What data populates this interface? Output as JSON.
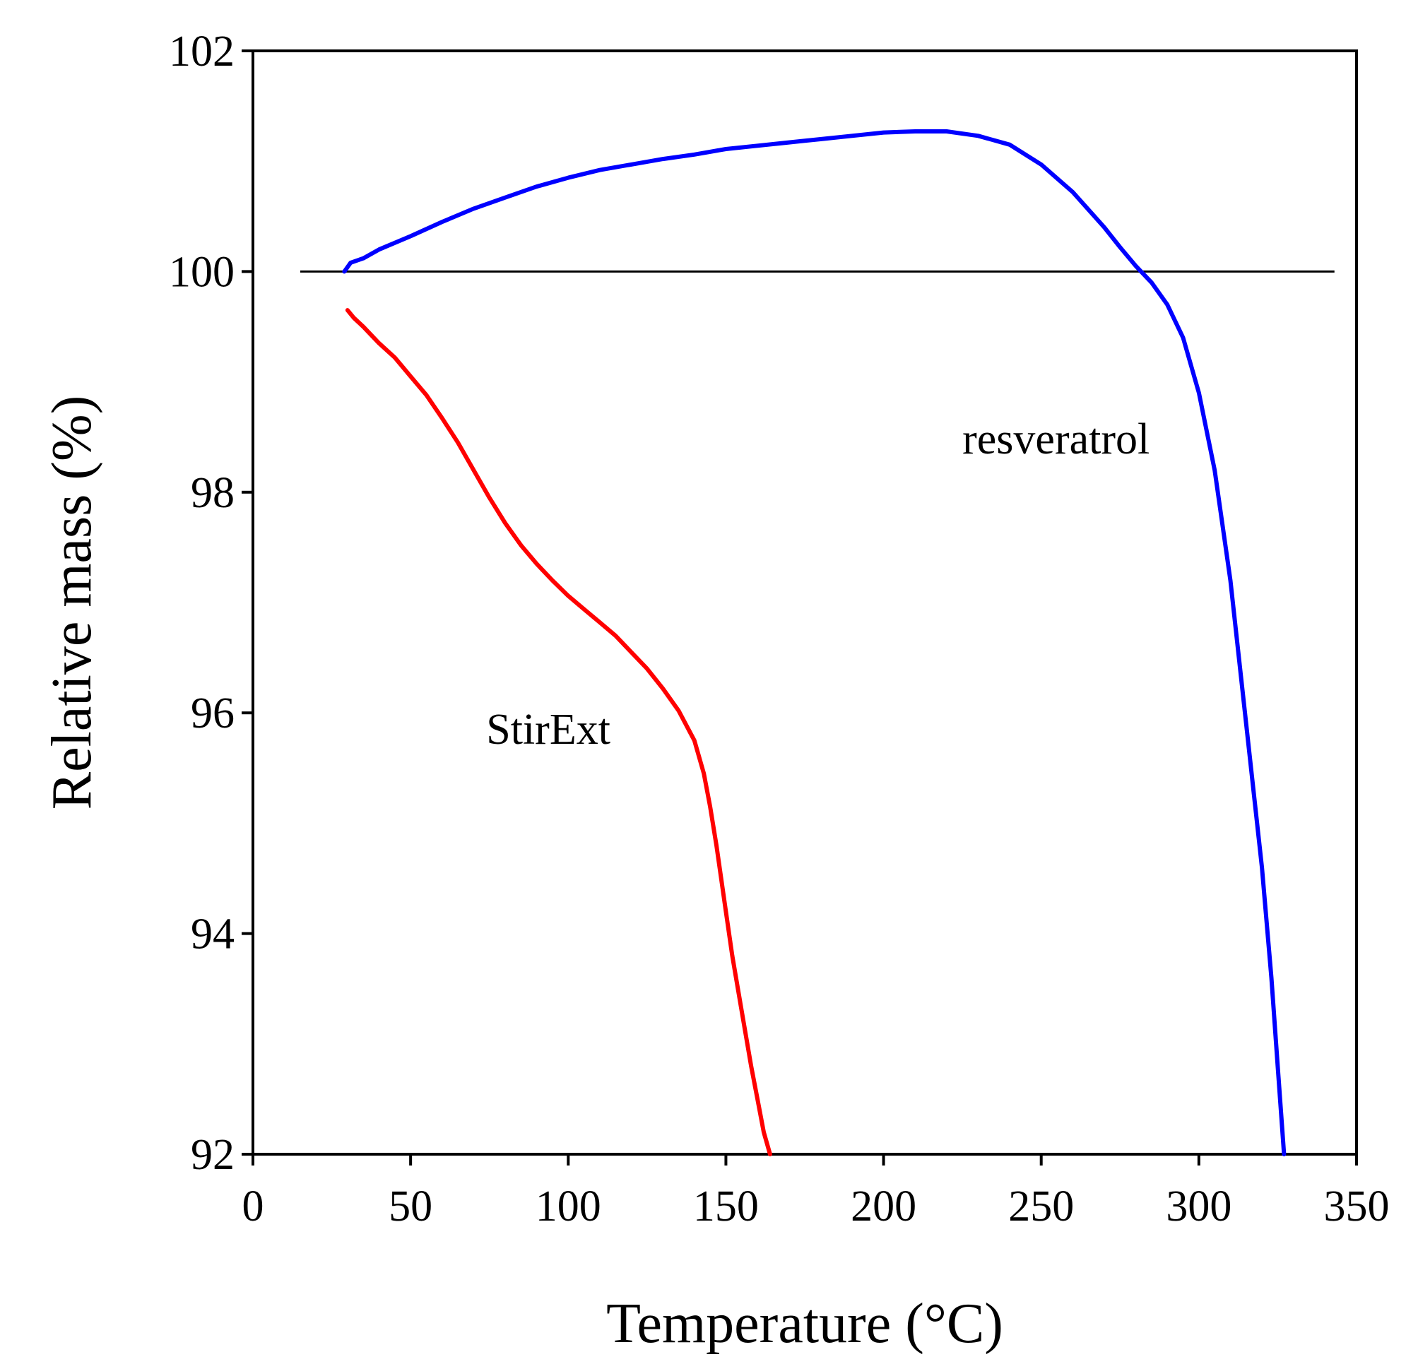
{
  "chart_data": {
    "type": "line",
    "title": "",
    "xlabel": "Temperature (°C)",
    "ylabel": "Relative mass (%)",
    "xlim": [
      0,
      350
    ],
    "ylim": [
      92,
      102
    ],
    "xticks": [
      0,
      50,
      100,
      150,
      200,
      250,
      300,
      350
    ],
    "yticks": [
      92,
      94,
      96,
      98,
      100,
      102
    ],
    "grid": false,
    "reference_line": {
      "y": 100,
      "x_start": 15,
      "x_end": 343,
      "color": "#000000"
    },
    "series": [
      {
        "name": "resveratrol",
        "label": "resveratrol",
        "label_at": [
          225,
          98.35
        ],
        "color": "#0000ff",
        "x": [
          29,
          31,
          35,
          40,
          50,
          60,
          70,
          80,
          90,
          100,
          110,
          120,
          130,
          140,
          150,
          160,
          170,
          180,
          190,
          200,
          210,
          220,
          230,
          240,
          250,
          260,
          270,
          275,
          280,
          285,
          290,
          295,
          300,
          305,
          310,
          315,
          320,
          323,
          325,
          327
        ],
        "y": [
          100.0,
          100.08,
          100.12,
          100.2,
          100.32,
          100.45,
          100.57,
          100.67,
          100.77,
          100.85,
          100.92,
          100.97,
          101.02,
          101.06,
          101.11,
          101.14,
          101.17,
          101.2,
          101.23,
          101.26,
          101.27,
          101.27,
          101.23,
          101.15,
          100.97,
          100.72,
          100.4,
          100.22,
          100.05,
          99.9,
          99.7,
          99.4,
          98.9,
          98.2,
          97.2,
          95.9,
          94.6,
          93.6,
          92.8,
          92.0
        ]
      },
      {
        "name": "StirExt",
        "label": "StirExt",
        "label_at": [
          74,
          95.72
        ],
        "color": "#ff0000",
        "x": [
          30,
          32,
          35,
          40,
          45,
          50,
          55,
          60,
          65,
          70,
          75,
          80,
          85,
          90,
          95,
          100,
          105,
          110,
          115,
          120,
          125,
          130,
          135,
          140,
          143,
          145,
          147,
          150,
          152,
          155,
          158,
          160,
          162,
          164
        ],
        "y": [
          99.65,
          99.58,
          99.5,
          99.35,
          99.22,
          99.05,
          98.88,
          98.67,
          98.45,
          98.2,
          97.95,
          97.72,
          97.52,
          97.35,
          97.2,
          97.06,
          96.94,
          96.82,
          96.7,
          96.55,
          96.4,
          96.22,
          96.02,
          95.75,
          95.45,
          95.15,
          94.8,
          94.2,
          93.8,
          93.3,
          92.8,
          92.5,
          92.2,
          92.0
        ]
      }
    ]
  }
}
